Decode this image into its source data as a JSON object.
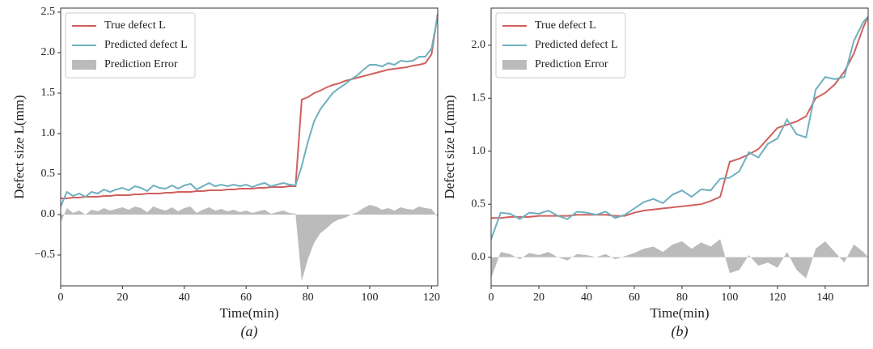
{
  "chart_data": [
    {
      "type": "line",
      "caption": "(a)",
      "xlabel": "Time(min)",
      "ylabel": "Defect size L(mm)",
      "xlim": [
        0,
        122
      ],
      "ylim": [
        -0.88,
        2.55
      ],
      "xticks": [
        0,
        20,
        40,
        60,
        80,
        100,
        120
      ],
      "yticks": [
        {
          "value": -0.5,
          "label": "−0.5"
        },
        {
          "value": 0,
          "label": "0.0"
        },
        0.5,
        {
          "value": 1,
          "label": "1.0"
        },
        1.5,
        {
          "value": 2,
          "label": "2.0"
        },
        2.5
      ],
      "legend": "upper left",
      "x": [
        0,
        2,
        4,
        6,
        8,
        10,
        12,
        14,
        16,
        18,
        20,
        22,
        24,
        26,
        28,
        30,
        32,
        34,
        36,
        38,
        40,
        42,
        44,
        46,
        48,
        50,
        52,
        54,
        56,
        58,
        60,
        62,
        64,
        66,
        68,
        70,
        72,
        74,
        76,
        78,
        80,
        82,
        84,
        86,
        88,
        90,
        92,
        94,
        96,
        98,
        100,
        102,
        104,
        106,
        108,
        110,
        112,
        114,
        116,
        118,
        120,
        122
      ],
      "series": [
        {
          "name": "True defect L",
          "color": "#d0605e",
          "kind": "line",
          "values": [
            0.2,
            0.2,
            0.21,
            0.21,
            0.22,
            0.22,
            0.22,
            0.23,
            0.23,
            0.24,
            0.24,
            0.24,
            0.25,
            0.25,
            0.26,
            0.26,
            0.26,
            0.27,
            0.27,
            0.28,
            0.28,
            0.28,
            0.29,
            0.29,
            0.3,
            0.3,
            0.3,
            0.31,
            0.31,
            0.32,
            0.32,
            0.32,
            0.33,
            0.33,
            0.34,
            0.34,
            0.34,
            0.35,
            0.35,
            1.42,
            1.45,
            1.5,
            1.53,
            1.57,
            1.6,
            1.62,
            1.65,
            1.67,
            1.69,
            1.71,
            1.73,
            1.75,
            1.77,
            1.79,
            1.8,
            1.81,
            1.82,
            1.84,
            1.85,
            1.87,
            1.98,
            2.48
          ]
        },
        {
          "name": "Predicted defect L",
          "color": "#6fb0bf",
          "kind": "line",
          "values": [
            0.1,
            0.28,
            0.23,
            0.26,
            0.22,
            0.28,
            0.26,
            0.31,
            0.28,
            0.31,
            0.33,
            0.3,
            0.35,
            0.33,
            0.29,
            0.36,
            0.33,
            0.32,
            0.36,
            0.32,
            0.36,
            0.38,
            0.31,
            0.35,
            0.39,
            0.35,
            0.37,
            0.35,
            0.37,
            0.35,
            0.37,
            0.34,
            0.37,
            0.39,
            0.35,
            0.37,
            0.39,
            0.37,
            0.36,
            0.6,
            0.9,
            1.15,
            1.3,
            1.4,
            1.5,
            1.56,
            1.61,
            1.67,
            1.72,
            1.79,
            1.85,
            1.85,
            1.83,
            1.87,
            1.85,
            1.9,
            1.89,
            1.9,
            1.95,
            1.95,
            2.05,
            2.45
          ]
        },
        {
          "name": "Prediction Error",
          "color": "#bbbbbb",
          "kind": "area",
          "values": [
            -0.1,
            0.08,
            0.02,
            0.05,
            0.0,
            0.06,
            0.04,
            0.08,
            0.05,
            0.07,
            0.09,
            0.06,
            0.1,
            0.08,
            0.03,
            0.1,
            0.07,
            0.05,
            0.09,
            0.04,
            0.08,
            0.1,
            0.02,
            0.06,
            0.09,
            0.05,
            0.07,
            0.04,
            0.06,
            0.03,
            0.05,
            0.02,
            0.04,
            0.06,
            0.01,
            0.03,
            0.05,
            0.02,
            0.01,
            -0.82,
            -0.55,
            -0.35,
            -0.23,
            -0.17,
            -0.1,
            -0.06,
            -0.04,
            0.0,
            0.03,
            0.08,
            0.12,
            0.1,
            0.06,
            0.08,
            0.05,
            0.09,
            0.07,
            0.06,
            0.1,
            0.08,
            0.07,
            -0.03
          ]
        }
      ]
    },
    {
      "type": "line",
      "caption": "(b)",
      "xlabel": "Time(min)",
      "ylabel": "Defect size L(mm)",
      "xlim": [
        0,
        158
      ],
      "ylim": [
        -0.27,
        2.35
      ],
      "xticks": [
        0,
        20,
        40,
        60,
        80,
        100,
        120,
        140
      ],
      "yticks": [
        {
          "value": 0,
          "label": "0.0"
        },
        0.5,
        {
          "value": 1,
          "label": "1.0"
        },
        1.5,
        {
          "value": 2,
          "label": "2.0"
        }
      ],
      "legend": "upper left",
      "x": [
        0,
        4,
        8,
        12,
        16,
        20,
        24,
        28,
        32,
        36,
        40,
        44,
        48,
        52,
        56,
        60,
        64,
        68,
        72,
        76,
        80,
        84,
        88,
        92,
        96,
        100,
        104,
        108,
        112,
        116,
        120,
        124,
        128,
        132,
        136,
        140,
        144,
        148,
        152,
        156,
        158
      ],
      "series": [
        {
          "name": "True defect L",
          "color": "#d0605e",
          "kind": "line",
          "values": [
            0.37,
            0.37,
            0.38,
            0.38,
            0.38,
            0.39,
            0.39,
            0.39,
            0.39,
            0.4,
            0.4,
            0.4,
            0.4,
            0.39,
            0.39,
            0.42,
            0.44,
            0.45,
            0.46,
            0.47,
            0.48,
            0.49,
            0.5,
            0.53,
            0.57,
            0.9,
            0.93,
            0.97,
            1.02,
            1.12,
            1.22,
            1.25,
            1.28,
            1.33,
            1.5,
            1.55,
            1.63,
            1.75,
            1.92,
            2.17,
            2.27
          ]
        },
        {
          "name": "Predicted defect L",
          "color": "#6fb0bf",
          "kind": "line",
          "values": [
            0.17,
            0.42,
            0.41,
            0.36,
            0.42,
            0.41,
            0.44,
            0.39,
            0.36,
            0.43,
            0.42,
            0.4,
            0.43,
            0.37,
            0.4,
            0.46,
            0.52,
            0.55,
            0.51,
            0.59,
            0.63,
            0.57,
            0.64,
            0.63,
            0.74,
            0.75,
            0.81,
            0.99,
            0.94,
            1.07,
            1.12,
            1.3,
            1.16,
            1.13,
            1.58,
            1.7,
            1.68,
            1.7,
            2.04,
            2.22,
            2.27
          ]
        },
        {
          "name": "Prediction Error",
          "color": "#bbbbbb",
          "kind": "area",
          "values": [
            -0.2,
            0.05,
            0.03,
            -0.02,
            0.04,
            0.02,
            0.05,
            0.0,
            -0.03,
            0.03,
            0.02,
            0.0,
            0.03,
            -0.02,
            0.01,
            0.04,
            0.08,
            0.1,
            0.05,
            0.12,
            0.15,
            0.08,
            0.14,
            0.1,
            0.17,
            -0.15,
            -0.12,
            0.02,
            -0.08,
            -0.05,
            -0.1,
            0.05,
            -0.12,
            -0.2,
            0.08,
            0.15,
            0.05,
            -0.05,
            0.12,
            0.05,
            0.0
          ]
        }
      ]
    }
  ]
}
